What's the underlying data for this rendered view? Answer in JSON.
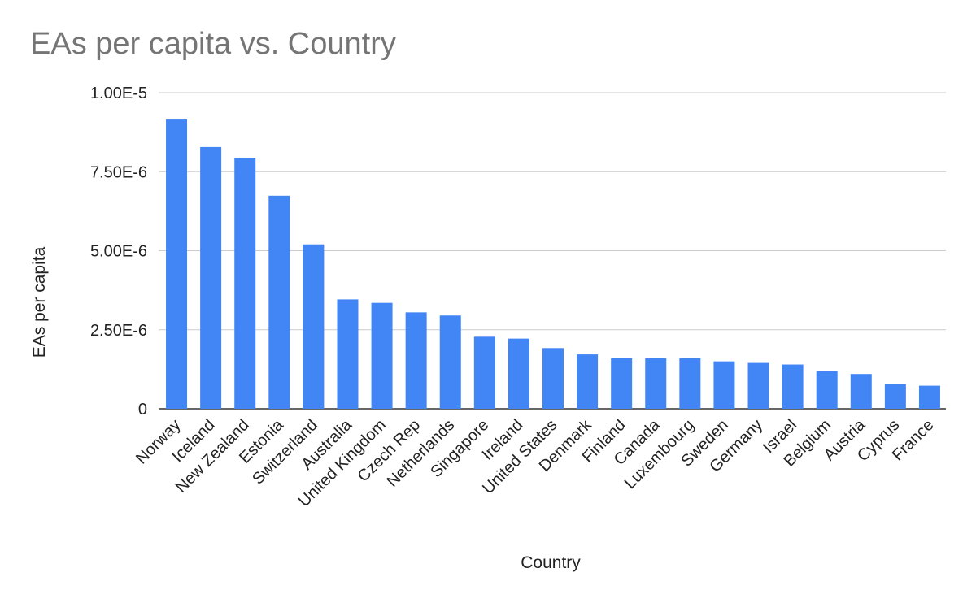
{
  "chart_data": {
    "type": "bar",
    "title": "EAs per capita vs. Country",
    "xlabel": "Country",
    "ylabel": "EAs per capita",
    "ylim": [
      0,
      1e-05
    ],
    "yticks": [
      0,
      2.5e-06,
      5e-06,
      7.5e-06,
      1e-05
    ],
    "ytick_labels": [
      "0",
      "2.50E-6",
      "5.00E-6",
      "7.50E-6",
      "1.00E-5"
    ],
    "grid": true,
    "bar_color": "#4285f4",
    "categories": [
      "Norway",
      "Iceland",
      "New Zealand",
      "Estonia",
      "Switzerland",
      "Australia",
      "United Kingdom",
      "Czech Rep",
      "Netherlands",
      "Singapore",
      "Ireland",
      "United States",
      "Denmark",
      "Finland",
      "Canada",
      "Luxembourg",
      "Sweden",
      "Germany",
      "Israel",
      "Belgium",
      "Austria",
      "Cyprus",
      "France"
    ],
    "values": [
      9.15e-06,
      8.28e-06,
      7.92e-06,
      6.74e-06,
      5.2e-06,
      3.46e-06,
      3.35e-06,
      3.05e-06,
      2.95e-06,
      2.28e-06,
      2.22e-06,
      1.92e-06,
      1.72e-06,
      1.6e-06,
      1.6e-06,
      1.6e-06,
      1.5e-06,
      1.45e-06,
      1.4e-06,
      1.2e-06,
      1.1e-06,
      7.8e-07,
      7.3e-07
    ]
  }
}
